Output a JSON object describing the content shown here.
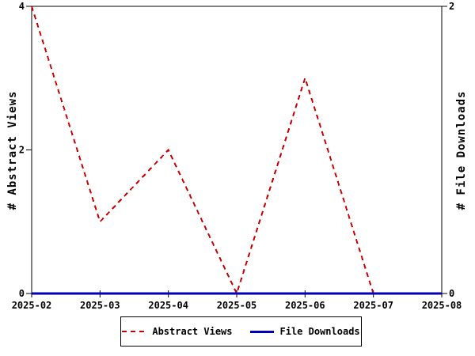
{
  "chart_data": {
    "type": "line",
    "title": "",
    "x_categories": [
      "2025-02",
      "2025-03",
      "2025-04",
      "2025-05",
      "2025-06",
      "2025-07",
      "2025-08"
    ],
    "series": [
      {
        "name": "Abstract Views",
        "axis": "left",
        "color": "#cc0000",
        "style": "dashed",
        "width": 2,
        "values": [
          4,
          1,
          2,
          0,
          3,
          0,
          null
        ]
      },
      {
        "name": "File Downloads",
        "axis": "right",
        "color": "#0000bb",
        "style": "solid",
        "width": 3,
        "values": [
          0,
          0,
          0,
          0,
          0,
          0,
          0
        ]
      }
    ],
    "left_axis": {
      "label": "# Abstract Views",
      "ticks": [
        0,
        2,
        4
      ],
      "range": [
        0,
        4
      ]
    },
    "right_axis": {
      "label": "# File Downloads",
      "ticks": [
        0,
        2
      ],
      "range": [
        0,
        2
      ]
    },
    "grid": false,
    "legend_position": "bottom",
    "background_color": "#ffffff",
    "axis_color": "#000000"
  }
}
